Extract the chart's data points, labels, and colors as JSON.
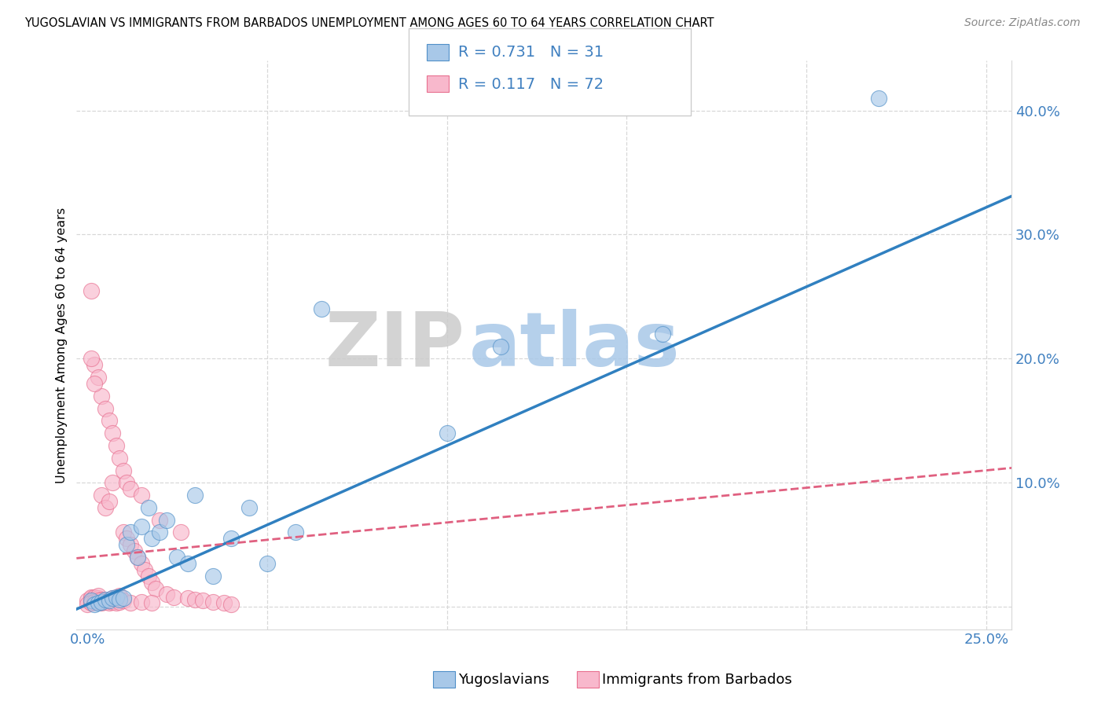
{
  "title": "YUGOSLAVIAN VS IMMIGRANTS FROM BARBADOS UNEMPLOYMENT AMONG AGES 60 TO 64 YEARS CORRELATION CHART",
  "source": "Source: ZipAtlas.com",
  "ylabel": "Unemployment Among Ages 60 to 64 years",
  "xlim": [
    -0.003,
    0.257
  ],
  "ylim": [
    -0.018,
    0.44
  ],
  "blue_fill": "#a8c8e8",
  "pink_fill": "#f8b8cc",
  "blue_edge": "#5090c8",
  "pink_edge": "#e87090",
  "line_blue": "#3080c0",
  "line_pink": "#e06080",
  "watermark_zip": "#cccccc",
  "watermark_atlas": "#a8c8e8",
  "label_yug": "Yugoslavians",
  "label_bar": "Immigrants from Barbados",
  "legend_text_color": "#4080c0",
  "blue_slope": 1.28,
  "blue_intercept": 0.002,
  "pink_slope": 0.28,
  "pink_intercept": 0.04,
  "yug_x": [
    0.001,
    0.002,
    0.003,
    0.004,
    0.005,
    0.006,
    0.007,
    0.008,
    0.009,
    0.01,
    0.011,
    0.012,
    0.014,
    0.015,
    0.017,
    0.018,
    0.02,
    0.022,
    0.025,
    0.028,
    0.03,
    0.035,
    0.04,
    0.045,
    0.05,
    0.058,
    0.065,
    0.1,
    0.115,
    0.16,
    0.22
  ],
  "yug_y": [
    0.005,
    0.002,
    0.003,
    0.004,
    0.006,
    0.005,
    0.007,
    0.008,
    0.006,
    0.007,
    0.05,
    0.06,
    0.04,
    0.065,
    0.08,
    0.055,
    0.06,
    0.07,
    0.04,
    0.035,
    0.09,
    0.025,
    0.055,
    0.08,
    0.035,
    0.06,
    0.24,
    0.14,
    0.21,
    0.22,
    0.41
  ],
  "bar_x": [
    0.0,
    0.001,
    0.001,
    0.001,
    0.001,
    0.001,
    0.001,
    0.001,
    0.002,
    0.002,
    0.002,
    0.002,
    0.003,
    0.003,
    0.003,
    0.003,
    0.004,
    0.004,
    0.004,
    0.005,
    0.005,
    0.005,
    0.006,
    0.006,
    0.006,
    0.007,
    0.007,
    0.007,
    0.008,
    0.008,
    0.009,
    0.009,
    0.01,
    0.01,
    0.011,
    0.011,
    0.012,
    0.012,
    0.013,
    0.014,
    0.015,
    0.015,
    0.016,
    0.017,
    0.018,
    0.019,
    0.02,
    0.022,
    0.024,
    0.026,
    0.028,
    0.03,
    0.032,
    0.035,
    0.038,
    0.04,
    0.0,
    0.001,
    0.001,
    0.002,
    0.002,
    0.003,
    0.004,
    0.005,
    0.006,
    0.007,
    0.008,
    0.009,
    0.01,
    0.012,
    0.015,
    0.018
  ],
  "bar_y": [
    0.005,
    0.004,
    0.005,
    0.006,
    0.007,
    0.008,
    0.255,
    0.003,
    0.004,
    0.006,
    0.008,
    0.195,
    0.005,
    0.007,
    0.185,
    0.009,
    0.006,
    0.09,
    0.17,
    0.005,
    0.08,
    0.16,
    0.006,
    0.085,
    0.15,
    0.007,
    0.1,
    0.14,
    0.008,
    0.13,
    0.009,
    0.12,
    0.06,
    0.11,
    0.055,
    0.1,
    0.05,
    0.095,
    0.045,
    0.04,
    0.035,
    0.09,
    0.03,
    0.025,
    0.02,
    0.015,
    0.07,
    0.01,
    0.008,
    0.06,
    0.007,
    0.006,
    0.005,
    0.004,
    0.003,
    0.002,
    0.002,
    0.003,
    0.2,
    0.004,
    0.18,
    0.005,
    0.003,
    0.004,
    0.003,
    0.004,
    0.003,
    0.004,
    0.005,
    0.003,
    0.004,
    0.003
  ]
}
